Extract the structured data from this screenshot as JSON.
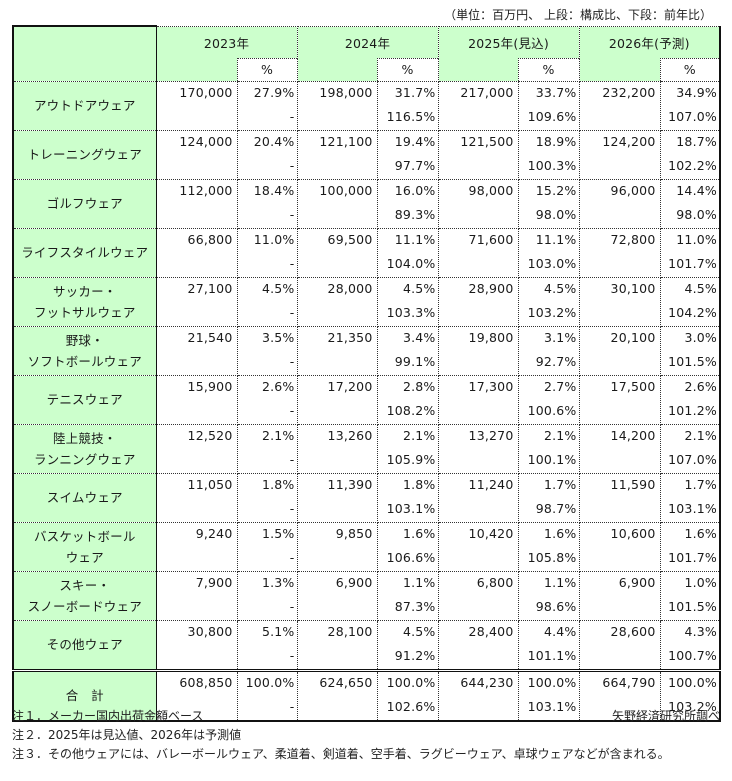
{
  "unit_note": "（単位：百万円、 上段：構成比、下段：前年比）",
  "header": {
    "years": [
      "2023年",
      "2024年",
      "2025年(見込)",
      "2026年(予測)"
    ],
    "pct_label": "%"
  },
  "rows": [
    {
      "label": [
        "アウトドアウェア"
      ],
      "cells": [
        {
          "value": "170,000",
          "share": "27.9%",
          "yoy": "-"
        },
        {
          "value": "198,000",
          "share": "31.7%",
          "yoy": "116.5%"
        },
        {
          "value": "217,000",
          "share": "33.7%",
          "yoy": "109.6%"
        },
        {
          "value": "232,200",
          "share": "34.9%",
          "yoy": "107.0%"
        }
      ]
    },
    {
      "label": [
        "トレーニングウェア"
      ],
      "cells": [
        {
          "value": "124,000",
          "share": "20.4%",
          "yoy": "-"
        },
        {
          "value": "121,100",
          "share": "19.4%",
          "yoy": "97.7%"
        },
        {
          "value": "121,500",
          "share": "18.9%",
          "yoy": "100.3%"
        },
        {
          "value": "124,200",
          "share": "18.7%",
          "yoy": "102.2%"
        }
      ]
    },
    {
      "label": [
        "ゴルフウェア"
      ],
      "cells": [
        {
          "value": "112,000",
          "share": "18.4%",
          "yoy": "-"
        },
        {
          "value": "100,000",
          "share": "16.0%",
          "yoy": "89.3%"
        },
        {
          "value": "98,000",
          "share": "15.2%",
          "yoy": "98.0%"
        },
        {
          "value": "96,000",
          "share": "14.4%",
          "yoy": "98.0%"
        }
      ]
    },
    {
      "label": [
        "ライフスタイルウェア"
      ],
      "cells": [
        {
          "value": "66,800",
          "share": "11.0%",
          "yoy": "-"
        },
        {
          "value": "69,500",
          "share": "11.1%",
          "yoy": "104.0%"
        },
        {
          "value": "71,600",
          "share": "11.1%",
          "yoy": "103.0%"
        },
        {
          "value": "72,800",
          "share": "11.0%",
          "yoy": "101.7%"
        }
      ]
    },
    {
      "label": [
        "サッカー・",
        "フットサルウェア"
      ],
      "cells": [
        {
          "value": "27,100",
          "share": "4.5%",
          "yoy": "-"
        },
        {
          "value": "28,000",
          "share": "4.5%",
          "yoy": "103.3%"
        },
        {
          "value": "28,900",
          "share": "4.5%",
          "yoy": "103.2%"
        },
        {
          "value": "30,100",
          "share": "4.5%",
          "yoy": "104.2%"
        }
      ]
    },
    {
      "label": [
        "野球・",
        "ソフトボールウェア"
      ],
      "cells": [
        {
          "value": "21,540",
          "share": "3.5%",
          "yoy": "-"
        },
        {
          "value": "21,350",
          "share": "3.4%",
          "yoy": "99.1%"
        },
        {
          "value": "19,800",
          "share": "3.1%",
          "yoy": "92.7%"
        },
        {
          "value": "20,100",
          "share": "3.0%",
          "yoy": "101.5%"
        }
      ]
    },
    {
      "label": [
        "テニスウェア"
      ],
      "cells": [
        {
          "value": "15,900",
          "share": "2.6%",
          "yoy": "-"
        },
        {
          "value": "17,200",
          "share": "2.8%",
          "yoy": "108.2%"
        },
        {
          "value": "17,300",
          "share": "2.7%",
          "yoy": "100.6%"
        },
        {
          "value": "17,500",
          "share": "2.6%",
          "yoy": "101.2%"
        }
      ]
    },
    {
      "label": [
        "陸上競技・",
        "ランニングウェア"
      ],
      "cells": [
        {
          "value": "12,520",
          "share": "2.1%",
          "yoy": "-"
        },
        {
          "value": "13,260",
          "share": "2.1%",
          "yoy": "105.9%"
        },
        {
          "value": "13,270",
          "share": "2.1%",
          "yoy": "100.1%"
        },
        {
          "value": "14,200",
          "share": "2.1%",
          "yoy": "107.0%"
        }
      ]
    },
    {
      "label": [
        "スイムウェア"
      ],
      "cells": [
        {
          "value": "11,050",
          "share": "1.8%",
          "yoy": "-"
        },
        {
          "value": "11,390",
          "share": "1.8%",
          "yoy": "103.1%"
        },
        {
          "value": "11,240",
          "share": "1.7%",
          "yoy": "98.7%"
        },
        {
          "value": "11,590",
          "share": "1.7%",
          "yoy": "103.1%"
        }
      ]
    },
    {
      "label": [
        "バスケットボール",
        "ウェア"
      ],
      "cells": [
        {
          "value": "9,240",
          "share": "1.5%",
          "yoy": "-"
        },
        {
          "value": "9,850",
          "share": "1.6%",
          "yoy": "106.6%"
        },
        {
          "value": "10,420",
          "share": "1.6%",
          "yoy": "105.8%"
        },
        {
          "value": "10,600",
          "share": "1.6%",
          "yoy": "101.7%"
        }
      ]
    },
    {
      "label": [
        "スキー・",
        "スノーボードウェア"
      ],
      "cells": [
        {
          "value": "7,900",
          "share": "1.3%",
          "yoy": "-"
        },
        {
          "value": "6,900",
          "share": "1.1%",
          "yoy": "87.3%"
        },
        {
          "value": "6,800",
          "share": "1.1%",
          "yoy": "98.6%"
        },
        {
          "value": "6,900",
          "share": "1.0%",
          "yoy": "101.5%"
        }
      ]
    },
    {
      "label": [
        "その他ウェア"
      ],
      "cells": [
        {
          "value": "30,800",
          "share": "5.1%",
          "yoy": "-"
        },
        {
          "value": "28,100",
          "share": "4.5%",
          "yoy": "91.2%"
        },
        {
          "value": "28,400",
          "share": "4.4%",
          "yoy": "101.1%"
        },
        {
          "value": "28,600",
          "share": "4.3%",
          "yoy": "100.7%"
        }
      ]
    }
  ],
  "total": {
    "label": [
      "合　計"
    ],
    "cells": [
      {
        "value": "608,850",
        "share": "100.0%",
        "yoy": "-"
      },
      {
        "value": "624,650",
        "share": "100.0%",
        "yoy": "102.6%"
      },
      {
        "value": "644,230",
        "share": "100.0%",
        "yoy": "103.1%"
      },
      {
        "value": "664,790",
        "share": "100.0%",
        "yoy": "103.2%"
      }
    ]
  },
  "notes": [
    "注１．メーカー国内出荷金額ベース",
    "注２．2025年は見込値、2026年は予測値",
    "注３．その他ウェアには、バレーボールウェア、柔道着、剣道着、空手着、ラグビーウェア、卓球ウェアなどが含まれる。"
  ],
  "source": "矢野経済研究所調べ"
}
